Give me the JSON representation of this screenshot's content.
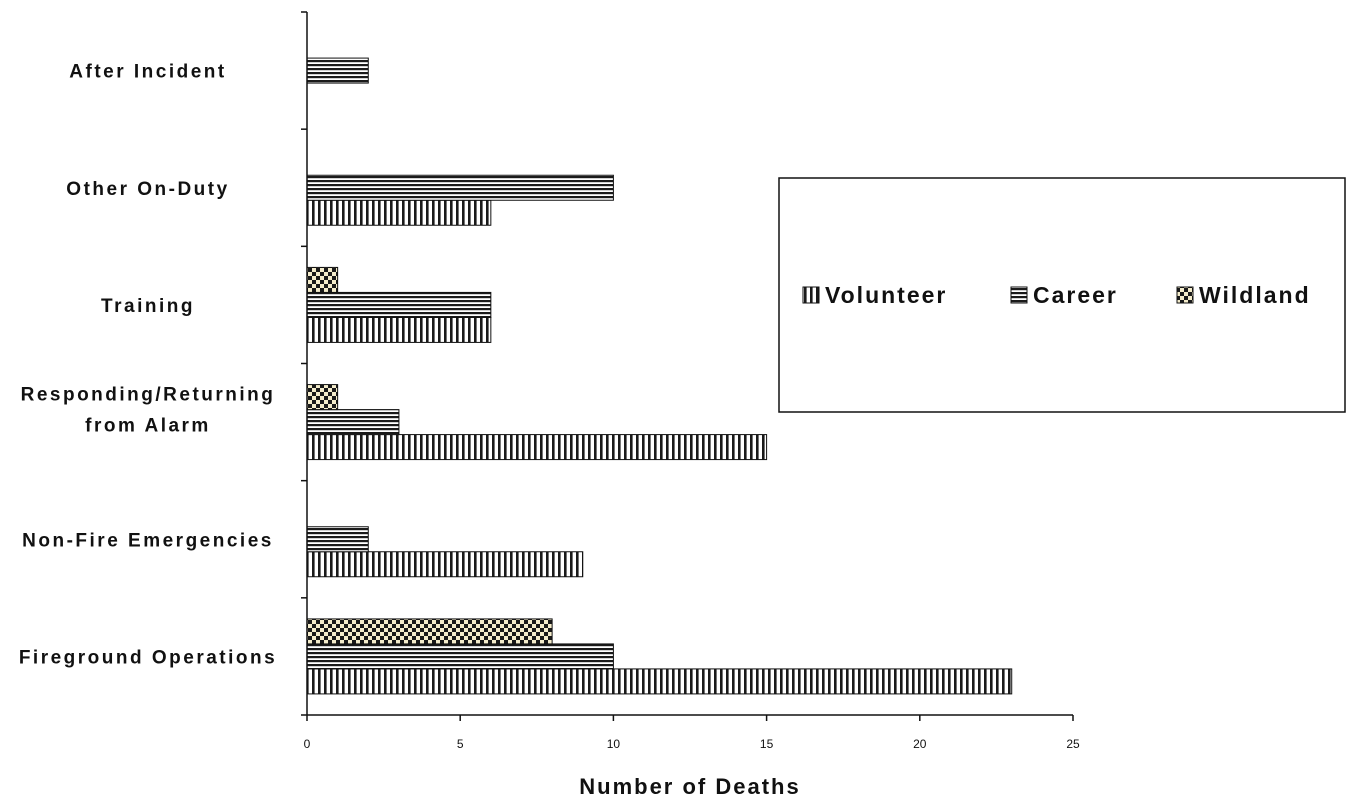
{
  "chart_data": {
    "type": "bar",
    "orientation": "horizontal",
    "categories": [
      "After Incident",
      "Other On-Duty",
      "Training",
      "Responding/Returning from Alarm",
      "Non-Fire Emergencies",
      "Fireground Operations"
    ],
    "category_lines": [
      [
        "After Incident"
      ],
      [
        "Other On-Duty"
      ],
      [
        "Training"
      ],
      [
        "Responding/Returning",
        "from Alarm"
      ],
      [
        "Non-Fire Emergencies"
      ],
      [
        "Fireground Operations"
      ]
    ],
    "series": [
      {
        "name": "Volunteer",
        "pattern": "vertical-stripes",
        "values": [
          0,
          6,
          6,
          15,
          9,
          23
        ]
      },
      {
        "name": "Career",
        "pattern": "horizontal-stripes",
        "values": [
          2,
          10,
          6,
          3,
          2,
          10
        ]
      },
      {
        "name": "Wildland",
        "pattern": "checker",
        "values": [
          0,
          0,
          1,
          1,
          0,
          8
        ]
      }
    ],
    "title": "",
    "xlabel": "Number of Deaths",
    "ylabel": "",
    "xlim": [
      0,
      25
    ],
    "xticks": [
      0,
      5,
      10,
      15,
      20,
      25
    ],
    "grid": false,
    "legend_position": "right"
  },
  "colors": {
    "stripe_dark": "#1a1a1a",
    "stripe_light": "#ffffff",
    "checker_light": "#f4eccb"
  }
}
